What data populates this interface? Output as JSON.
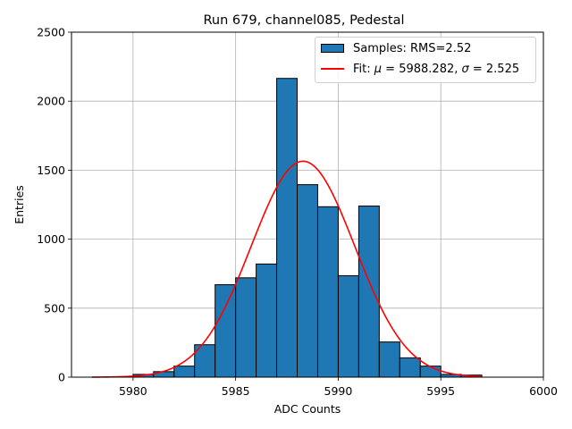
{
  "chart_data": {
    "type": "bar",
    "title": "Run 679, channel085, Pedestal",
    "xlabel": "ADC Counts",
    "ylabel": "Entries",
    "xlim": [
      5977,
      6000
    ],
    "ylim": [
      0,
      2500
    ],
    "xticks": [
      "5980",
      "5985",
      "5990",
      "5995",
      "6000"
    ],
    "yticks": [
      "0",
      "500",
      "1000",
      "1500",
      "2000",
      "2500"
    ],
    "grid": true,
    "legend_position": "top-right",
    "histogram": {
      "name": "Samples: RMS=2.52",
      "color": "#1f77b4",
      "bin_edges": [
        5980,
        5981,
        5982,
        5983,
        5984,
        5985,
        5986,
        5987,
        5988,
        5989,
        5990,
        5991,
        5992,
        5993,
        5994,
        5995,
        5996,
        5997
      ],
      "counts": [
        20,
        40,
        80,
        235,
        670,
        720,
        820,
        2165,
        1395,
        1235,
        735,
        1240,
        255,
        140,
        80,
        20,
        15
      ]
    },
    "fit": {
      "name_prefix": "Fit: ",
      "mu_symbol": "μ",
      "mu_text": " = 5988.282, ",
      "sigma_symbol": "σ",
      "sigma_text": " = 2.525",
      "mu": 5988.282,
      "sigma": 2.525,
      "amplitude": 1565,
      "x_range": [
        5978,
        5997
      ],
      "color": "#ff0000"
    }
  }
}
